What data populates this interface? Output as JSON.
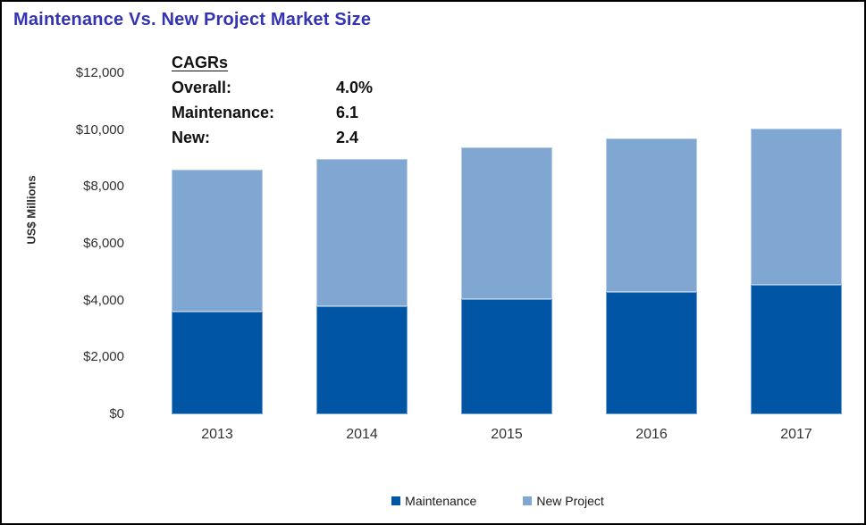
{
  "title": "Maintenance Vs. New Project Market Size",
  "annotation": {
    "heading": "CAGRs",
    "rows": [
      {
        "label": "Overall:",
        "value": "4.0%"
      },
      {
        "label": "Maintenance:",
        "value": "6.1"
      },
      {
        "label": "New:",
        "value": "2.4"
      }
    ]
  },
  "chart_data": {
    "type": "bar",
    "stacked": true,
    "title": "Maintenance Vs. New Project Market Size",
    "categories": [
      "2013",
      "2014",
      "2015",
      "2016",
      "2017"
    ],
    "series": [
      {
        "name": "Maintenance",
        "color": "#0055A5",
        "values": [
          3600,
          3800,
          4050,
          4300,
          4550
        ]
      },
      {
        "name": "New Project",
        "color": "#7FA7D2",
        "values": [
          5000,
          5200,
          5350,
          5400,
          5500
        ]
      }
    ],
    "totals": [
      8600,
      9000,
      9400,
      9700,
      10050
    ],
    "xlabel": "",
    "ylabel": "US$ Millions",
    "ylim": [
      0,
      12000
    ],
    "ytick_interval": 2000,
    "ytick_labels": [
      "$0",
      "$2,000",
      "$4,000",
      "$6,000",
      "$8,000",
      "$10,000",
      "$12,000"
    ],
    "grid": false,
    "legend_position": "bottom"
  },
  "colors": {
    "title": "#3333B3",
    "maintenance": "#0055A5",
    "new_project": "#7FA7D2",
    "frame_border": "#000000",
    "text": "#303030"
  }
}
